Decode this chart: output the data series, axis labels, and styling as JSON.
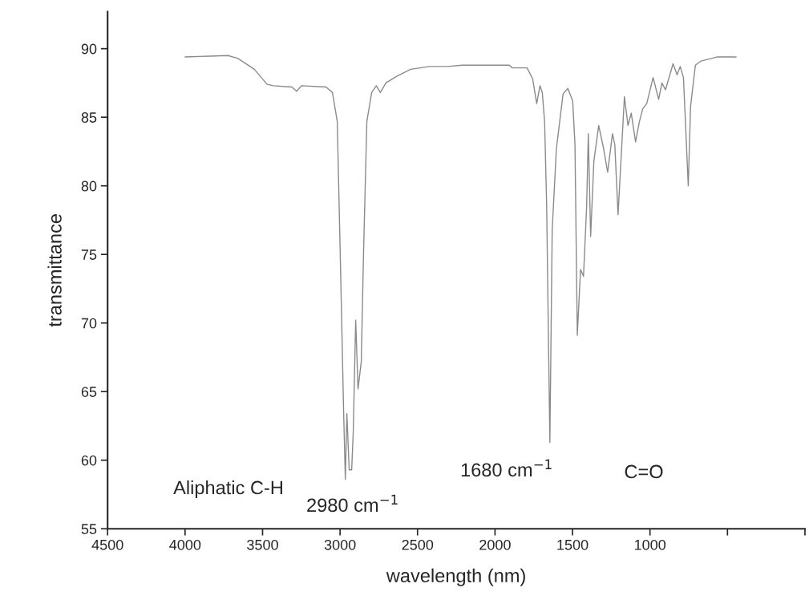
{
  "chart_data": {
    "type": "line",
    "xlabel": "wavelength (nm)",
    "ylabel": "transmittance",
    "x": [
      4000,
      3723,
      3661,
      3553,
      3471,
      3430,
      3311,
      3280,
      3249,
      3090,
      3049,
      3018,
      2997,
      2977,
      2966,
      2956,
      2941,
      2925,
      2915,
      2899,
      2884,
      2863,
      2848,
      2827,
      2796,
      2766,
      2740,
      2704,
      2632,
      2544,
      2421,
      2308,
      2210,
      1908,
      1888,
      1793,
      1757,
      1731,
      1710,
      1695,
      1680,
      1667,
      1646,
      1631,
      1604,
      1561,
      1530,
      1499,
      1484,
      1469,
      1448,
      1429,
      1409,
      1398,
      1383,
      1362,
      1331,
      1299,
      1273,
      1242,
      1227,
      1206,
      1165,
      1142,
      1121,
      1093,
      1068,
      1047,
      1021,
      980,
      944,
      923,
      900,
      851,
      825,
      805,
      784,
      753,
      738,
      707,
      671,
      563,
      444
    ],
    "series": [
      {
        "color": "#8a8a8a",
        "values": [
          89.4,
          89.5,
          89.3,
          88.5,
          87.4,
          87.3,
          87.2,
          86.9,
          87.3,
          87.2,
          86.8,
          84.7,
          74.1,
          63.6,
          58.6,
          63.4,
          59.3,
          59.3,
          62.0,
          70.2,
          65.2,
          67.2,
          75.3,
          84.7,
          86.8,
          87.3,
          86.8,
          87.5,
          88.0,
          88.5,
          88.7,
          88.7,
          88.8,
          88.8,
          88.6,
          88.6,
          87.8,
          86.0,
          87.3,
          86.8,
          84.7,
          78.7,
          61.3,
          76.8,
          82.7,
          86.7,
          87.1,
          86.2,
          83.0,
          69.1,
          73.9,
          73.4,
          78.4,
          83.8,
          76.3,
          81.8,
          84.4,
          82.7,
          81.0,
          83.8,
          83.0,
          77.9,
          86.5,
          84.4,
          85.3,
          83.2,
          84.7,
          85.6,
          86.0,
          87.9,
          86.3,
          87.5,
          87.0,
          88.9,
          88.1,
          88.7,
          87.9,
          80.0,
          85.8,
          88.8,
          89.1,
          89.4,
          89.4
        ]
      }
    ],
    "xlim": [
      4500,
      0
    ],
    "xticks": [
      4500,
      4000,
      3500,
      3000,
      2500,
      2000,
      1500,
      1000,
      {
        "value": 500,
        "label": null
      },
      {
        "value": 0,
        "label": null
      }
    ],
    "ylim": [
      55,
      92.7
    ],
    "yticks": [
      55,
      60,
      65,
      70,
      75,
      80,
      85,
      90
    ],
    "grid": false,
    "legend": false,
    "annotations": [
      "Aliphatic C-H",
      "2980 cm$^{−1}$",
      "1680 cm$^{−1}$",
      "C=O"
    ]
  }
}
